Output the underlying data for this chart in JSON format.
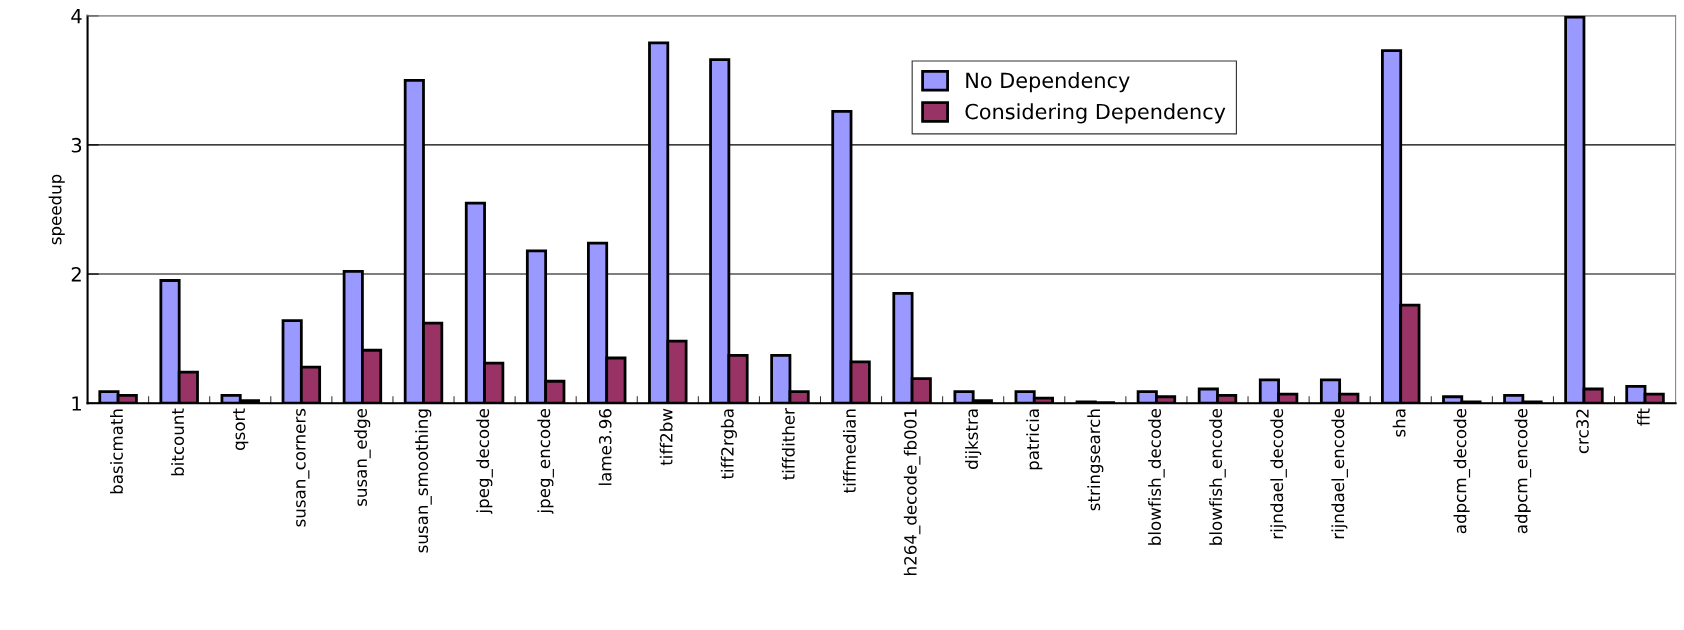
{
  "chart_data": {
    "type": "bar",
    "ylabel": "speedup",
    "categories": [
      "basicmath",
      "bitcount",
      "qsort",
      "susan_corners",
      "susan_edge",
      "susan_smoothing",
      "jpeg_decode",
      "jpeg_encode",
      "lame3.96",
      "tiff2bw",
      "tiff2rgba",
      "tiffdither",
      "tiffmedian",
      "h264_decode_fb001",
      "dijkstra",
      "patricia",
      "stringsearch",
      "blowfish_decode",
      "blowfish_encode",
      "rijndael_decode",
      "rijndael_encode",
      "sha",
      "adpcm_decode",
      "adpcm_encode",
      "crc32",
      "fft"
    ],
    "series": [
      {
        "name": "No Dependency",
        "color": "#9999ff",
        "values": [
          1.09,
          1.95,
          1.06,
          1.64,
          2.02,
          3.5,
          2.55,
          2.18,
          2.24,
          3.79,
          3.66,
          1.37,
          3.26,
          1.85,
          1.09,
          1.09,
          1.01,
          1.09,
          1.11,
          1.18,
          1.18,
          3.73,
          1.05,
          1.06,
          3.99,
          1.13
        ]
      },
      {
        "name": "Considering Dependency",
        "color": "#993366",
        "values": [
          1.06,
          1.24,
          1.02,
          1.28,
          1.41,
          1.62,
          1.31,
          1.17,
          1.35,
          1.48,
          1.37,
          1.09,
          1.32,
          1.19,
          1.02,
          1.04,
          1.005,
          1.05,
          1.06,
          1.07,
          1.07,
          1.76,
          1.01,
          1.01,
          1.11,
          1.07
        ]
      }
    ],
    "ylim": [
      1,
      4
    ],
    "yticks": [
      1,
      2,
      3,
      4
    ],
    "grid": "y",
    "legend": "top right"
  }
}
